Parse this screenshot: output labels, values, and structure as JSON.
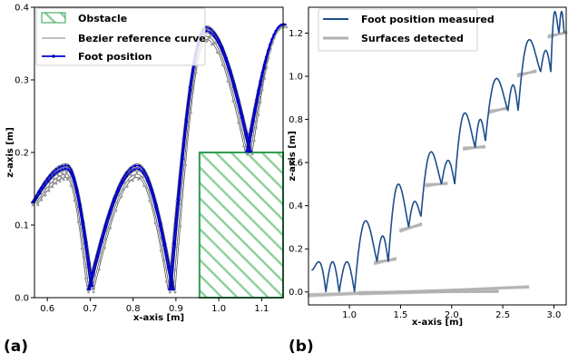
{
  "chart_data": [
    {
      "type": "line",
      "panel_label": "(a)",
      "xlabel": "x-axis [m]",
      "ylabel": "z-axis [m]",
      "xlim": [
        0.57,
        1.15
      ],
      "ylim": [
        0.0,
        0.4
      ],
      "xticks": [
        "0.6",
        "0.7",
        "0.8",
        "0.9",
        "1.0",
        "1.1"
      ],
      "yticks": [
        "0.0",
        "0.1",
        "0.2",
        "0.3",
        "0.4"
      ],
      "grid": false,
      "legend_position": "top-left",
      "colors": {
        "foot": "#0000cc",
        "bezier": "#555555",
        "scatter": "#9e9e9e",
        "obstacle": "#2e9e4f"
      },
      "obstacle": {
        "name": "Obstacle",
        "x": [
          0.955,
          1.15
        ],
        "z": [
          0.0,
          0.2
        ]
      },
      "series": [
        {
          "name": "Obstacle",
          "kind": "hatched-region"
        },
        {
          "name": "Bezier reference curve",
          "kind": "line",
          "steps": [
            {
              "x0": 0.57,
              "x1": 0.7,
              "peak": 0.175,
              "peak_x": 0.645,
              "z0": 0.13,
              "z1": 0.015
            },
            {
              "x0": 0.7,
              "x1": 0.89,
              "peak": 0.175,
              "peak_x": 0.81,
              "z0": 0.01,
              "z1": 0.01
            },
            {
              "x0": 0.89,
              "x1": 1.07,
              "peak": 0.365,
              "peak_x": 0.97,
              "z0": 0.01,
              "z1": 0.2
            },
            {
              "x0": 1.07,
              "x1": 1.15,
              "peak": 0.375,
              "peak_x": 1.15,
              "z0": 0.2,
              "z1": 0.375
            }
          ]
        },
        {
          "name": "Foot position",
          "kind": "line-with-markers"
        }
      ]
    },
    {
      "type": "line",
      "panel_label": "(b)",
      "xlabel": "x-axis [m]",
      "ylabel": "z-axis [m]",
      "xlim": [
        0.6,
        3.12
      ],
      "ylim": [
        -0.06,
        1.32
      ],
      "xticks": [
        "1.0",
        "1.5",
        "2.0",
        "2.5",
        "3.0"
      ],
      "yticks": [
        "0.0",
        "0.2",
        "0.4",
        "0.6",
        "0.8",
        "1.0",
        "1.2"
      ],
      "grid": false,
      "legend_position": "top-left",
      "colors": {
        "foot": "#1f4e8c",
        "surfaces": "#b0b0b0"
      },
      "series": [
        {
          "name": "Foot position measured",
          "kind": "line"
        },
        {
          "name": "Surfaces detected",
          "kind": "line"
        }
      ],
      "steps": [
        {
          "x0": 0.63,
          "x1": 0.77,
          "z0": 0.1,
          "z1": 0.0,
          "peak": 0.14
        },
        {
          "x0": 0.77,
          "x1": 0.9,
          "z0": 0.0,
          "z1": 0.0,
          "peak": 0.14
        },
        {
          "x0": 0.9,
          "x1": 1.05,
          "z0": 0.0,
          "z1": 0.0,
          "peak": 0.14
        },
        {
          "x0": 1.05,
          "x1": 1.27,
          "z0": 0.0,
          "z1": 0.14,
          "peak": 0.33
        },
        {
          "x0": 1.27,
          "x1": 1.38,
          "z0": 0.14,
          "z1": 0.14,
          "peak": 0.26
        },
        {
          "x0": 1.38,
          "x1": 1.58,
          "z0": 0.14,
          "z1": 0.3,
          "peak": 0.5
        },
        {
          "x0": 1.58,
          "x1": 1.7,
          "z0": 0.3,
          "z1": 0.35,
          "peak": 0.42
        },
        {
          "x0": 1.7,
          "x1": 1.9,
          "z0": 0.35,
          "z1": 0.5,
          "peak": 0.65
        },
        {
          "x0": 1.9,
          "x1": 2.03,
          "z0": 0.5,
          "z1": 0.5,
          "peak": 0.61
        },
        {
          "x0": 2.03,
          "x1": 2.23,
          "z0": 0.5,
          "z1": 0.67,
          "peak": 0.83
        },
        {
          "x0": 2.23,
          "x1": 2.33,
          "z0": 0.67,
          "z1": 0.7,
          "peak": 0.8
        },
        {
          "x0": 2.33,
          "x1": 2.55,
          "z0": 0.7,
          "z1": 0.84,
          "peak": 0.99
        },
        {
          "x0": 2.55,
          "x1": 2.65,
          "z0": 0.84,
          "z1": 0.84,
          "peak": 0.96
        },
        {
          "x0": 2.65,
          "x1": 2.87,
          "z0": 0.84,
          "z1": 1.02,
          "peak": 1.17
        },
        {
          "x0": 2.87,
          "x1": 2.97,
          "z0": 1.02,
          "z1": 1.02,
          "peak": 1.12
        },
        {
          "x0": 2.97,
          "x1": 3.05,
          "z0": 1.02,
          "z1": 1.2,
          "peak": 1.3
        },
        {
          "x0": 3.05,
          "x1": 3.1,
          "z0": 1.2,
          "z1": 1.2,
          "peak": 1.3
        }
      ],
      "surfaces": [
        {
          "x": [
            0.6,
            2.75
          ],
          "z": [
            -0.01,
            0.02
          ]
        },
        {
          "x": [
            1.1,
            2.45
          ],
          "z": [
            0.0,
            0.0
          ]
        },
        {
          "x": [
            1.25,
            1.45
          ],
          "z": [
            0.14,
            0.15
          ]
        },
        {
          "x": [
            1.5,
            1.7
          ],
          "z": [
            0.29,
            0.31
          ]
        },
        {
          "x": [
            1.75,
            1.95
          ],
          "z": [
            0.5,
            0.5
          ]
        },
        {
          "x": [
            2.12,
            2.32
          ],
          "z": [
            0.67,
            0.67
          ]
        },
        {
          "x": [
            2.37,
            2.55
          ],
          "z": [
            0.84,
            0.85
          ]
        },
        {
          "x": [
            2.65,
            2.82
          ],
          "z": [
            1.01,
            1.02
          ]
        },
        {
          "x": [
            2.95,
            3.12
          ],
          "z": [
            1.19,
            1.2
          ]
        }
      ]
    }
  ]
}
